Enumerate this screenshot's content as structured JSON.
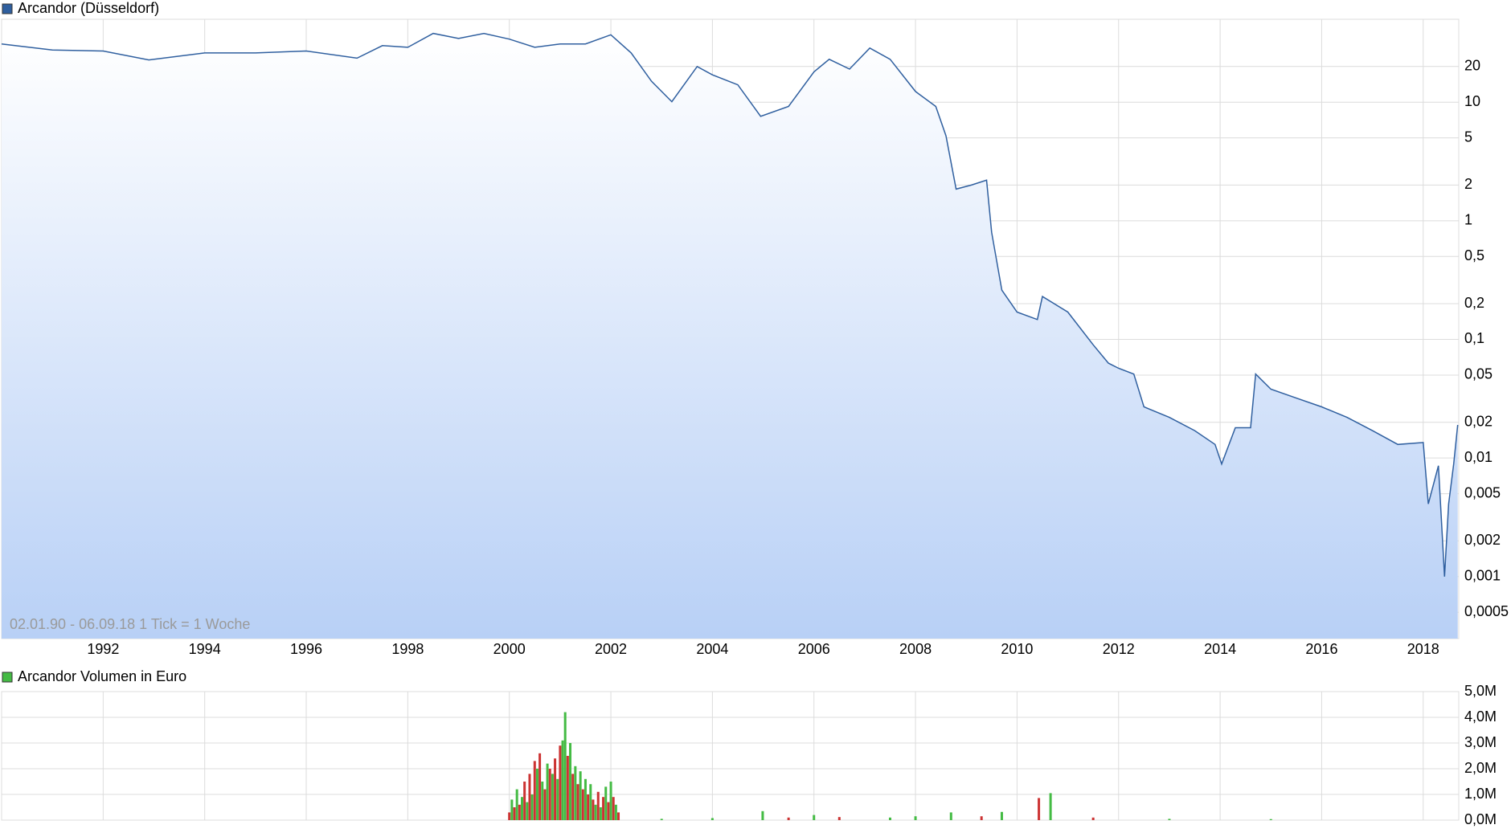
{
  "chart_data": [
    {
      "type": "line",
      "log": true,
      "grid": true,
      "annotation": "02.01.90 - 06.09.18   1 Tick = 1 Woche",
      "series": [
        {
          "name": "Arcandor (Düsseldorf)",
          "color": "#2f5f9f",
          "x": [
            1990.0,
            1991.0,
            1992.0,
            1992.9,
            1994.0,
            1995.0,
            1996.0,
            1997.0,
            1997.5,
            1998.0,
            1998.5,
            1999.0,
            1999.5,
            2000.0,
            2000.5,
            2001.0,
            2001.5,
            2002.0,
            2002.4,
            2002.8,
            2003.2,
            2003.7,
            2004.0,
            2004.5,
            2004.95,
            2005.5,
            2006.0,
            2006.3,
            2006.7,
            2007.1,
            2007.5,
            2008.0,
            2008.4,
            2008.6,
            2008.8,
            2009.1,
            2009.4,
            2009.5,
            2009.7,
            2010.0,
            2010.4,
            2010.5,
            2011.0,
            2011.5,
            2011.8,
            2012.0,
            2012.3,
            2012.5,
            2013.0,
            2013.5,
            2013.9,
            2014.03,
            2014.3,
            2014.6,
            2014.7,
            2015.0,
            2015.5,
            2016.0,
            2016.5,
            2017.0,
            2017.5,
            2018.0,
            2018.1,
            2018.3,
            2018.42,
            2018.5,
            2018.6,
            2018.68
          ],
          "values": [
            31,
            27.5,
            27,
            22.7,
            26,
            26,
            27,
            23.5,
            30,
            29,
            38,
            34.5,
            38,
            34,
            29,
            31,
            31,
            37,
            26,
            15,
            10.1,
            20,
            17,
            14,
            7.6,
            9.2,
            18,
            23,
            19,
            28.6,
            23,
            12.3,
            9.2,
            5.2,
            1.85,
            2,
            2.2,
            0.8,
            0.26,
            0.17,
            0.147,
            0.23,
            0.17,
            0.09,
            0.063,
            0.057,
            0.051,
            0.027,
            0.022,
            0.017,
            0.013,
            0.0089,
            0.018,
            0.018,
            0.051,
            0.038,
            0.032,
            0.027,
            0.022,
            0.017,
            0.013,
            0.0135,
            0.0041,
            0.0086,
            0.001,
            0.0041,
            0.0089,
            0.019
          ]
        }
      ],
      "xlim": [
        1990.0,
        2018.7
      ],
      "xticks": [
        1992,
        1994,
        1996,
        1998,
        2000,
        2002,
        2004,
        2006,
        2008,
        2010,
        2012,
        2014,
        2016,
        2018
      ],
      "ylim": [
        0.0003,
        50
      ],
      "yticks": [
        {
          "value": 0.0005,
          "label": "0,0005"
        },
        {
          "value": 0.001,
          "label": "0,001"
        },
        {
          "value": 0.002,
          "label": "0,002"
        },
        {
          "value": 0.005,
          "label": "0,005"
        },
        {
          "value": 0.01,
          "label": "0,01"
        },
        {
          "value": 0.02,
          "label": "0,02"
        },
        {
          "value": 0.05,
          "label": "0,05"
        },
        {
          "value": 0.1,
          "label": "0,1"
        },
        {
          "value": 0.2,
          "label": "0,2"
        },
        {
          "value": 0.5,
          "label": "0,5"
        },
        1,
        2,
        5,
        10,
        20
      ]
    },
    {
      "type": "bar",
      "grid": true,
      "series": [
        {
          "name": "Arcandor Volumen in Euro",
          "color": "#44bb44",
          "x": [
            2000.0,
            2000.05,
            2000.1,
            2000.15,
            2000.2,
            2000.25,
            2000.3,
            2000.35,
            2000.4,
            2000.45,
            2000.5,
            2000.55,
            2000.6,
            2000.65,
            2000.7,
            2000.75,
            2000.8,
            2000.85,
            2000.9,
            2000.95,
            2001.0,
            2001.05,
            2001.1,
            2001.15,
            2001.2,
            2001.25,
            2001.3,
            2001.35,
            2001.4,
            2001.45,
            2001.5,
            2001.55,
            2001.6,
            2001.65,
            2001.7,
            2001.75,
            2001.8,
            2001.85,
            2001.9,
            2001.95,
            2002.0,
            2002.05,
            2002.1,
            2002.15,
            2003.0,
            2004.0,
            2004.99,
            2005.5,
            2006.0,
            2006.5,
            2007.5,
            2008.0,
            2008.7,
            2009.3,
            2009.7,
            2010.43,
            2010.66,
            2011.5,
            2013.0,
            2015.0
          ],
          "values": [
            300000,
            800000,
            500000,
            1200000,
            600000,
            900000,
            1500000,
            700000,
            1800000,
            1000000,
            2300000,
            2000000,
            2600000,
            1500000,
            1200000,
            2200000,
            2000000,
            1800000,
            2400000,
            1600000,
            2900000,
            3100000,
            4200000,
            2500000,
            3000000,
            1800000,
            2100000,
            1400000,
            1900000,
            1200000,
            1600000,
            1000000,
            1400000,
            800000,
            600000,
            1100000,
            500000,
            900000,
            1300000,
            700000,
            1500000,
            900000,
            600000,
            300000,
            50000,
            80000,
            350000,
            100000,
            200000,
            120000,
            100000,
            150000,
            300000,
            150000,
            320000,
            860000,
            1050000,
            100000,
            50000,
            40000
          ],
          "colors": [
            "#cc3333",
            "#44bb44",
            "#cc3333",
            "#44bb44",
            "#cc3333",
            "#44bb44",
            "#cc3333",
            "#44bb44",
            "#cc3333",
            "#44bb44",
            "#cc3333",
            "#44bb44",
            "#cc3333",
            "#44bb44",
            "#cc3333",
            "#44bb44",
            "#cc3333",
            "#44bb44",
            "#cc3333",
            "#44bb44",
            "#cc3333",
            "#44bb44",
            "#44bb44",
            "#cc3333",
            "#44bb44",
            "#cc3333",
            "#44bb44",
            "#cc3333",
            "#44bb44",
            "#cc3333",
            "#44bb44",
            "#cc3333",
            "#44bb44",
            "#cc3333",
            "#44bb44",
            "#cc3333",
            "#44bb44",
            "#cc3333",
            "#44bb44",
            "#cc3333",
            "#44bb44",
            "#cc3333",
            "#44bb44",
            "#cc3333",
            "#44bb44",
            "#44bb44",
            "#44bb44",
            "#cc3333",
            "#44bb44",
            "#cc3333",
            "#44bb44",
            "#44bb44",
            "#44bb44",
            "#cc3333",
            "#44bb44",
            "#cc3333",
            "#44bb44",
            "#cc3333",
            "#44bb44",
            "#44bb44"
          ]
        }
      ],
      "xlim": [
        1990.0,
        2018.7
      ],
      "ylim": [
        0,
        5000000
      ],
      "yticks": [
        {
          "value": 0,
          "label": "0,0M"
        },
        {
          "value": 1000000,
          "label": "1,0M"
        },
        {
          "value": 2000000,
          "label": "2,0M"
        },
        {
          "value": 3000000,
          "label": "3,0M"
        },
        {
          "value": 4000000,
          "label": "4,0M"
        },
        {
          "value": 5000000,
          "label": "5,0M"
        }
      ]
    }
  ]
}
